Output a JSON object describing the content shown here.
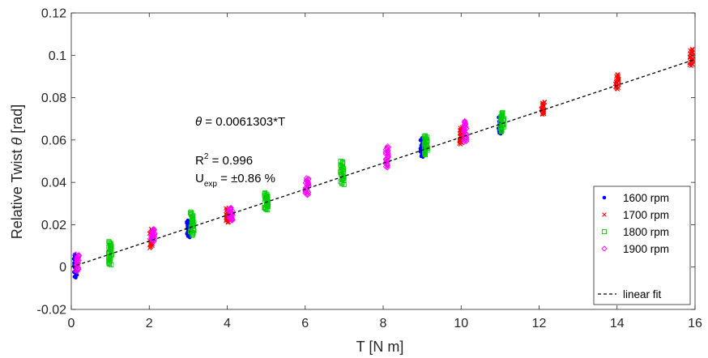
{
  "chart_data": {
    "type": "scatter",
    "xlabel_main": "T [N m]",
    "ylabel_main": "Relative Twist ",
    "ylabel_symbol": "θ",
    "ylabel_unit": " [rad]",
    "xlim": [
      0,
      16
    ],
    "ylim": [
      -0.02,
      0.12
    ],
    "xticks": [
      0,
      2,
      4,
      6,
      8,
      10,
      12,
      14,
      16
    ],
    "xtick_labels": [
      "0",
      "2",
      "4",
      "6",
      "8",
      "10",
      "12",
      "14",
      "16"
    ],
    "yticks": [
      -0.02,
      0,
      0.02,
      0.04,
      0.06,
      0.08,
      0.1,
      0.12
    ],
    "ytick_labels": [
      "-0.02",
      "0",
      "0.02",
      "0.04",
      "0.06",
      "0.08",
      "0.1",
      "0.12"
    ],
    "grid": false,
    "box": true,
    "legend_position": "bottom-right",
    "series": [
      {
        "name": "1600 rpm",
        "marker": "dot",
        "color": "#0000ff",
        "points": [
          [
            0.1,
            -0.005,
            0.006
          ],
          [
            3.0,
            0.014,
            0.022
          ],
          [
            9.0,
            0.052,
            0.061
          ],
          [
            11.0,
            0.063,
            0.071
          ]
        ]
      },
      {
        "name": "1700 rpm",
        "marker": "x",
        "color": "#ff0000",
        "points": [
          [
            2.05,
            0.009,
            0.018
          ],
          [
            4.0,
            0.021,
            0.028
          ],
          [
            10.0,
            0.058,
            0.066
          ],
          [
            12.1,
            0.072,
            0.078
          ],
          [
            14.0,
            0.084,
            0.091
          ],
          [
            15.9,
            0.095,
            0.103
          ]
        ]
      },
      {
        "name": "1800 rpm",
        "marker": "square",
        "color": "#00cc00",
        "points": [
          [
            1.0,
            0.001,
            0.012
          ],
          [
            3.1,
            0.015,
            0.026
          ],
          [
            5.0,
            0.027,
            0.035
          ],
          [
            6.95,
            0.039,
            0.05
          ],
          [
            9.1,
            0.053,
            0.062
          ],
          [
            11.05,
            0.064,
            0.073
          ]
        ]
      },
      {
        "name": "1900 rpm",
        "marker": "diamond",
        "color": "#ff00ff",
        "points": [
          [
            0.15,
            -0.002,
            0.006
          ],
          [
            2.1,
            0.012,
            0.018
          ],
          [
            4.1,
            0.022,
            0.028
          ],
          [
            6.05,
            0.034,
            0.042
          ],
          [
            8.1,
            0.047,
            0.057
          ],
          [
            10.1,
            0.059,
            0.069
          ]
        ]
      }
    ],
    "fit": {
      "name": "linear fit",
      "slope": 0.0061303,
      "intercept": 0,
      "x_range": [
        0,
        16
      ],
      "style": "dashed",
      "color": "#000000"
    },
    "annotations": {
      "equation_symbol": "θ",
      "equation_text": " = 0.0061303*T",
      "r2_base": "R",
      "r2_sup": "2",
      "r2_rest": " = 0.996",
      "uexp_base": "U",
      "uexp_sub": "exp",
      "uexp_rest": " = ±0.86 %"
    }
  }
}
